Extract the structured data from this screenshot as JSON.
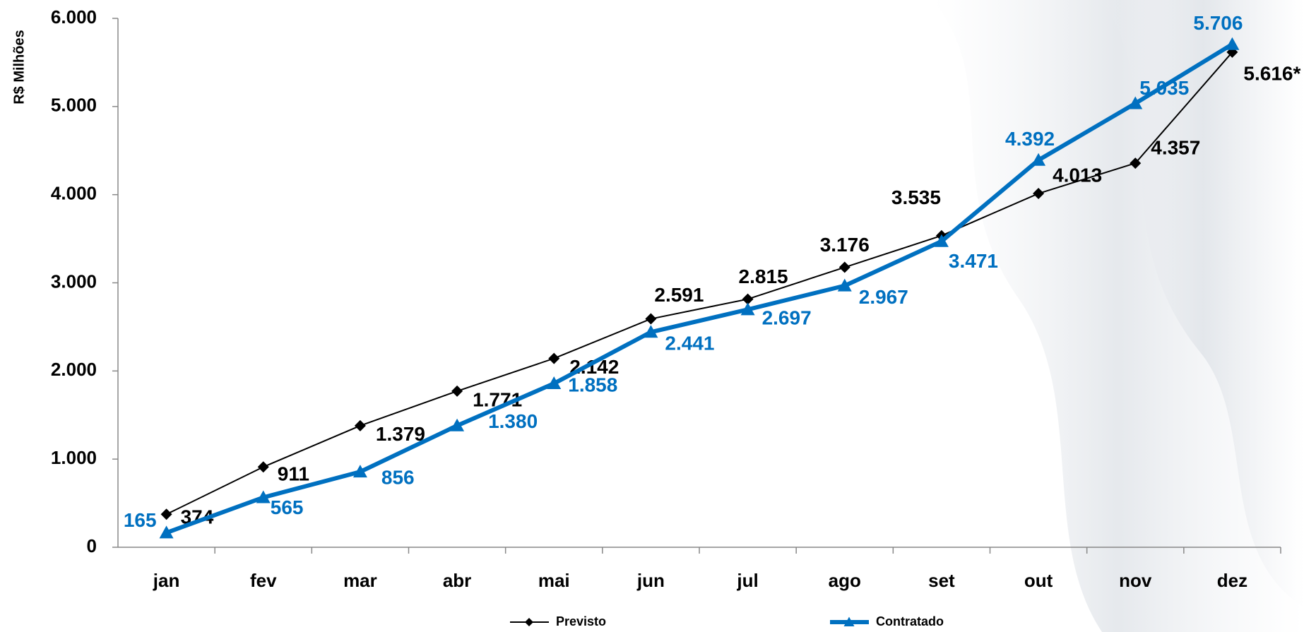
{
  "chart_data": {
    "type": "line",
    "y_label": "R$ Milhões",
    "categories": [
      "jan",
      "fev",
      "mar",
      "abr",
      "mai",
      "jun",
      "jul",
      "ago",
      "set",
      "out",
      "nov",
      "dez"
    ],
    "series": [
      {
        "name": "Previsto",
        "color": "#000000",
        "values": [
          374,
          911,
          1379,
          1771,
          2142,
          2591,
          2815,
          3176,
          3535,
          4013,
          4357,
          5616
        ],
        "value_labels": [
          "374",
          "911",
          "1.379",
          "1.771",
          "2.142",
          "2.591",
          "2.815",
          "3.176",
          "3.535",
          "4.013",
          "4.357",
          "5.616*"
        ]
      },
      {
        "name": "Contratado",
        "color": "#0070c0",
        "values": [
          165,
          565,
          856,
          1380,
          1858,
          2441,
          2697,
          2967,
          3471,
          4392,
          5035,
          5706
        ],
        "value_labels": [
          "165",
          "565",
          "856",
          "1.380",
          "1.858",
          "2.441",
          "2.697",
          "2.967",
          "3.471",
          "4.392",
          "5.035",
          "5.706"
        ]
      }
    ],
    "ylim": [
      0,
      6000
    ],
    "yticks": [
      0,
      {
        "value": 1000,
        "label": "1.000"
      },
      {
        "value": 2000,
        "label": "2.000"
      },
      {
        "value": 3000,
        "label": "3.000"
      },
      {
        "value": 4000,
        "label": "4.000"
      },
      {
        "value": 5000,
        "label": "5.000"
      },
      {
        "value": 6000,
        "label": "6.000"
      }
    ],
    "grid": false
  }
}
